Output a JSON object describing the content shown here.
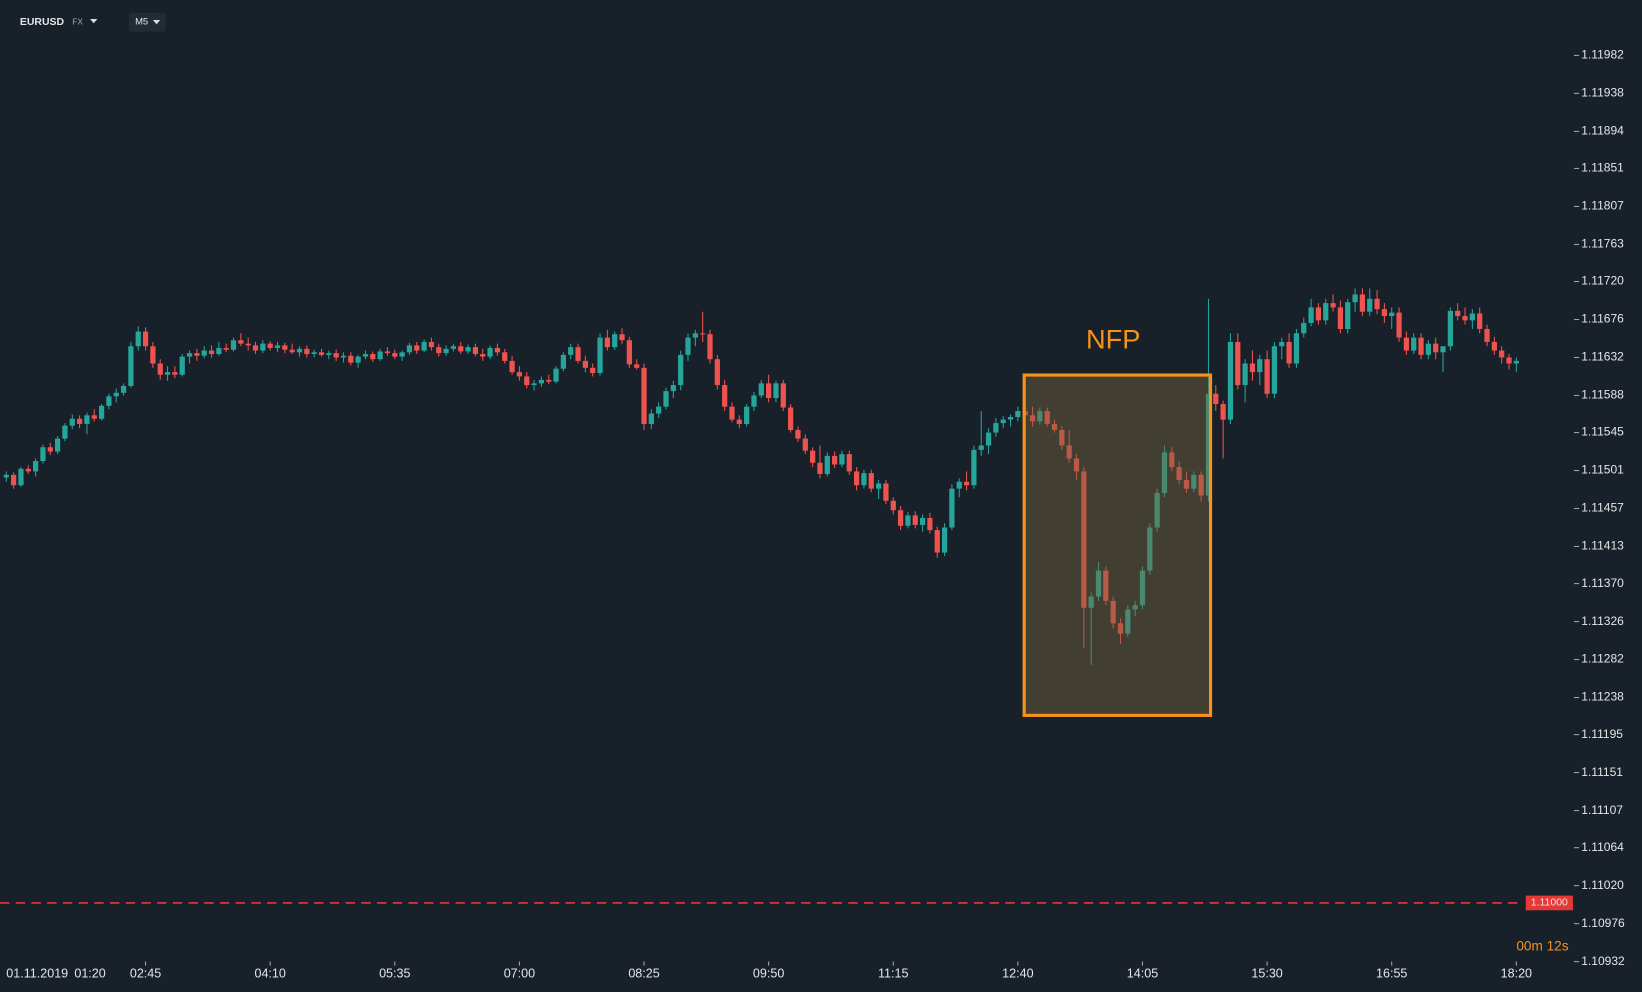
{
  "header": {
    "symbol": "EURUSD",
    "market": "FX",
    "timeframe": "M5"
  },
  "chart_data": {
    "type": "candlestick",
    "up_color": "#26a69a",
    "down_color": "#ef5350",
    "ylim": [
      1.10897,
      1.12046
    ],
    "yticks": [
      1.11982,
      1.11938,
      1.11894,
      1.11851,
      1.11807,
      1.11763,
      {
        "value": 1.1172,
        "label": "1.11720"
      },
      1.11676,
      1.11632,
      1.11588,
      1.11545,
      1.11501,
      1.11457,
      1.11413,
      {
        "value": 1.1137,
        "label": "1.11370"
      },
      1.11326,
      1.11282,
      1.11238,
      1.11195,
      1.11151,
      1.11107,
      1.11064,
      {
        "value": 1.1102,
        "label": "1.11020"
      },
      1.10976,
      1.10932
    ],
    "start_date": "01.11.2019",
    "start_time": "01:20",
    "xticks": [
      {
        "value": 19,
        "label": "02:45"
      },
      {
        "value": 36,
        "label": "04:10"
      },
      {
        "value": 53,
        "label": "05:35"
      },
      {
        "value": 70,
        "label": "07:00"
      },
      {
        "value": 87,
        "label": "08:25"
      },
      {
        "value": 104,
        "label": "09:50"
      },
      {
        "value": 121,
        "label": "11:15"
      },
      {
        "value": 138,
        "label": "12:40"
      },
      {
        "value": 155,
        "label": "14:05"
      },
      {
        "value": 172,
        "label": "15:30"
      },
      {
        "value": 189,
        "label": "16:55"
      },
      {
        "value": 206,
        "label": "18:20"
      }
    ],
    "price_line": {
      "value": 1.11,
      "label": "1.11000",
      "color": "#e53935"
    },
    "annotation": "NFP",
    "countdown": "00m 12s",
    "candles": [
      [
        1.11493,
        1.115,
        1.11488,
        1.11496
      ],
      [
        1.11496,
        1.11499,
        1.1148,
        1.11484
      ],
      [
        1.11484,
        1.11505,
        1.11482,
        1.11503
      ],
      [
        1.11503,
        1.11507,
        1.11497,
        1.115
      ],
      [
        1.115,
        1.11515,
        1.11494,
        1.11512
      ],
      [
        1.11512,
        1.11531,
        1.11509,
        1.11528
      ],
      [
        1.11528,
        1.11533,
        1.11519,
        1.11523
      ],
      [
        1.11523,
        1.11541,
        1.1152,
        1.11538
      ],
      [
        1.11538,
        1.11556,
        1.11535,
        1.11553
      ],
      [
        1.11553,
        1.11566,
        1.11549,
        1.11561
      ],
      [
        1.11561,
        1.11565,
        1.1155,
        1.11555
      ],
      [
        1.11555,
        1.11568,
        1.11543,
        1.11565
      ],
      [
        1.11565,
        1.11572,
        1.11558,
        1.11561
      ],
      [
        1.11561,
        1.11578,
        1.11559,
        1.11576
      ],
      [
        1.11576,
        1.1159,
        1.11572,
        1.11587
      ],
      [
        1.11587,
        1.11596,
        1.1158,
        1.11591
      ],
      [
        1.11591,
        1.11602,
        1.11588,
        1.11599
      ],
      [
        1.11599,
        1.1165,
        1.11597,
        1.11645
      ],
      [
        1.11645,
        1.11668,
        1.1164,
        1.11662
      ],
      [
        1.11662,
        1.11667,
        1.1164,
        1.11645
      ],
      [
        1.11645,
        1.1165,
        1.1162,
        1.11625
      ],
      [
        1.11625,
        1.1163,
        1.11606,
        1.11612
      ],
      [
        1.11612,
        1.11622,
        1.11605,
        1.11615
      ],
      [
        1.11615,
        1.11622,
        1.11608,
        1.11612
      ],
      [
        1.11612,
        1.11636,
        1.1161,
        1.11633
      ],
      [
        1.11633,
        1.1164,
        1.11625,
        1.11637
      ],
      [
        1.11637,
        1.11642,
        1.11628,
        1.11634
      ],
      [
        1.11634,
        1.11645,
        1.11631,
        1.1164
      ],
      [
        1.1164,
        1.11646,
        1.11632,
        1.11636
      ],
      [
        1.11636,
        1.1165,
        1.11634,
        1.11643
      ],
      [
        1.11643,
        1.11648,
        1.11638,
        1.11641
      ],
      [
        1.11641,
        1.11655,
        1.11639,
        1.11652
      ],
      [
        1.11652,
        1.1166,
        1.11645,
        1.11648
      ],
      [
        1.11648,
        1.11655,
        1.1164,
        1.11646
      ],
      [
        1.11646,
        1.1165,
        1.11636,
        1.1164
      ],
      [
        1.1164,
        1.11652,
        1.11637,
        1.11648
      ],
      [
        1.11648,
        1.11651,
        1.1164,
        1.11643
      ],
      [
        1.11643,
        1.1165,
        1.11638,
        1.11646
      ],
      [
        1.11646,
        1.11649,
        1.11637,
        1.11641
      ],
      [
        1.11641,
        1.11648,
        1.11636,
        1.11638
      ],
      [
        1.11638,
        1.11645,
        1.11633,
        1.11642
      ],
      [
        1.11642,
        1.11646,
        1.11632,
        1.11636
      ],
      [
        1.11636,
        1.11641,
        1.11632,
        1.11638
      ],
      [
        1.11638,
        1.11642,
        1.11633,
        1.11635
      ],
      [
        1.11635,
        1.1164,
        1.1163,
        1.11637
      ],
      [
        1.11637,
        1.11641,
        1.11628,
        1.11632
      ],
      [
        1.11632,
        1.11638,
        1.11626,
        1.11634
      ],
      [
        1.11634,
        1.11638,
        1.11623,
        1.11626
      ],
      [
        1.11626,
        1.11635,
        1.1162,
        1.11633
      ],
      [
        1.11633,
        1.1164,
        1.1163,
        1.11636
      ],
      [
        1.11636,
        1.11639,
        1.11627,
        1.1163
      ],
      [
        1.1163,
        1.11642,
        1.11628,
        1.11639
      ],
      [
        1.11639,
        1.11644,
        1.11634,
        1.11637
      ],
      [
        1.11637,
        1.11641,
        1.1163,
        1.11633
      ],
      [
        1.11633,
        1.1164,
        1.11628,
        1.11638
      ],
      [
        1.11638,
        1.11649,
        1.11635,
        1.11646
      ],
      [
        1.11646,
        1.1165,
        1.11636,
        1.1164
      ],
      [
        1.1164,
        1.11653,
        1.11638,
        1.1165
      ],
      [
        1.1165,
        1.11655,
        1.1164,
        1.11644
      ],
      [
        1.11644,
        1.11648,
        1.11633,
        1.11637
      ],
      [
        1.11637,
        1.11646,
        1.11634,
        1.11642
      ],
      [
        1.11642,
        1.11648,
        1.11639,
        1.11645
      ],
      [
        1.11645,
        1.1165,
        1.11636,
        1.11639
      ],
      [
        1.11639,
        1.11647,
        1.11636,
        1.11644
      ],
      [
        1.11644,
        1.11648,
        1.11633,
        1.11636
      ],
      [
        1.11636,
        1.11642,
        1.11628,
        1.11633
      ],
      [
        1.11633,
        1.11646,
        1.1163,
        1.11643
      ],
      [
        1.11643,
        1.11648,
        1.11634,
        1.11638
      ],
      [
        1.11638,
        1.11642,
        1.11625,
        1.11628
      ],
      [
        1.11628,
        1.11634,
        1.11612,
        1.11615
      ],
      [
        1.11615,
        1.11622,
        1.11605,
        1.1161
      ],
      [
        1.1161,
        1.11615,
        1.11596,
        1.116
      ],
      [
        1.116,
        1.11606,
        1.11594,
        1.11602
      ],
      [
        1.11602,
        1.1161,
        1.11598,
        1.11606
      ],
      [
        1.11606,
        1.11612,
        1.11601,
        1.11604
      ],
      [
        1.11604,
        1.11622,
        1.11602,
        1.11619
      ],
      [
        1.11619,
        1.11638,
        1.11616,
        1.11635
      ],
      [
        1.11635,
        1.11648,
        1.1163,
        1.11644
      ],
      [
        1.11644,
        1.11648,
        1.11625,
        1.11628
      ],
      [
        1.11628,
        1.11634,
        1.11615,
        1.1162
      ],
      [
        1.1162,
        1.11625,
        1.1161,
        1.11614
      ],
      [
        1.11614,
        1.1166,
        1.11611,
        1.11655
      ],
      [
        1.11655,
        1.11664,
        1.1164,
        1.11644
      ],
      [
        1.11644,
        1.11662,
        1.11641,
        1.11659
      ],
      [
        1.11659,
        1.11666,
        1.11648,
        1.11652
      ],
      [
        1.11652,
        1.11656,
        1.1162,
        1.11624
      ],
      [
        1.11624,
        1.1163,
        1.11618,
        1.1162
      ],
      [
        1.1162,
        1.11625,
        1.11548,
        1.11555
      ],
      [
        1.11555,
        1.11572,
        1.11549,
        1.11567
      ],
      [
        1.11567,
        1.1158,
        1.11562,
        1.11575
      ],
      [
        1.11575,
        1.11597,
        1.11572,
        1.11593
      ],
      [
        1.11593,
        1.11605,
        1.11585,
        1.116
      ],
      [
        1.116,
        1.1164,
        1.11594,
        1.11635
      ],
      [
        1.11635,
        1.1166,
        1.11628,
        1.11655
      ],
      [
        1.11655,
        1.11664,
        1.11645,
        1.1166
      ],
      [
        1.1166,
        1.11685,
        1.1165,
        1.11659
      ],
      [
        1.11659,
        1.11664,
        1.11625,
        1.1163
      ],
      [
        1.1163,
        1.11635,
        1.11595,
        1.116
      ],
      [
        1.116,
        1.11606,
        1.1157,
        1.11575
      ],
      [
        1.11575,
        1.1158,
        1.11557,
        1.1156
      ],
      [
        1.1156,
        1.11565,
        1.1155,
        1.11555
      ],
      [
        1.11555,
        1.11578,
        1.11552,
        1.11575
      ],
      [
        1.11575,
        1.11592,
        1.1157,
        1.11588
      ],
      [
        1.11588,
        1.11606,
        1.11585,
        1.11602
      ],
      [
        1.11602,
        1.11612,
        1.1158,
        1.11585
      ],
      [
        1.11585,
        1.11605,
        1.1158,
        1.11602
      ],
      [
        1.11602,
        1.11606,
        1.1157,
        1.11574
      ],
      [
        1.11574,
        1.11578,
        1.11545,
        1.11548
      ],
      [
        1.11548,
        1.11552,
        1.11534,
        1.11538
      ],
      [
        1.11538,
        1.11543,
        1.1152,
        1.11524
      ],
      [
        1.11524,
        1.11528,
        1.11505,
        1.1151
      ],
      [
        1.1151,
        1.1153,
        1.11492,
        1.11497
      ],
      [
        1.11497,
        1.11522,
        1.11494,
        1.11518
      ],
      [
        1.11518,
        1.11523,
        1.11504,
        1.11508
      ],
      [
        1.11508,
        1.11524,
        1.11505,
        1.1152
      ],
      [
        1.1152,
        1.11524,
        1.11496,
        1.115
      ],
      [
        1.115,
        1.11505,
        1.11478,
        1.11484
      ],
      [
        1.11484,
        1.11502,
        1.1148,
        1.11498
      ],
      [
        1.11498,
        1.11502,
        1.11476,
        1.1148
      ],
      [
        1.1148,
        1.1149,
        1.11468,
        1.11486
      ],
      [
        1.11486,
        1.1149,
        1.11462,
        1.11466
      ],
      [
        1.11466,
        1.1147,
        1.1145,
        1.11455
      ],
      [
        1.11455,
        1.1146,
        1.11432,
        1.11437
      ],
      [
        1.11437,
        1.11453,
        1.11434,
        1.11449
      ],
      [
        1.11449,
        1.11454,
        1.11434,
        1.11438
      ],
      [
        1.11438,
        1.1145,
        1.1143,
        1.11446
      ],
      [
        1.11446,
        1.11452,
        1.11428,
        1.11432
      ],
      [
        1.11432,
        1.11436,
        1.114,
        1.11406
      ],
      [
        1.11406,
        1.1144,
        1.11402,
        1.11435
      ],
      [
        1.11435,
        1.11485,
        1.11432,
        1.1148
      ],
      [
        1.1148,
        1.11492,
        1.1147,
        1.11488
      ],
      [
        1.11488,
        1.115,
        1.11478,
        1.11484
      ],
      [
        1.11484,
        1.1153,
        1.1148,
        1.11525
      ],
      [
        1.11525,
        1.1157,
        1.11518,
        1.1153
      ],
      [
        1.1153,
        1.1155,
        1.1152,
        1.11545
      ],
      [
        1.11545,
        1.11562,
        1.1154,
        1.11556
      ],
      [
        1.11556,
        1.11564,
        1.1155,
        1.1156
      ],
      [
        1.1156,
        1.11566,
        1.11552,
        1.11563
      ],
      [
        1.11563,
        1.11575,
        1.11558,
        1.1157
      ],
      [
        1.1157,
        1.11574,
        1.1156,
        1.11565
      ],
      [
        1.11565,
        1.11575,
        1.11552,
        1.11558
      ],
      [
        1.11558,
        1.11574,
        1.11554,
        1.1157
      ],
      [
        1.1157,
        1.11574,
        1.11552,
        1.11555
      ],
      [
        1.11555,
        1.1156,
        1.11545,
        1.11548
      ],
      [
        1.11548,
        1.11553,
        1.11525,
        1.1153
      ],
      [
        1.1153,
        1.11548,
        1.1151,
        1.11515
      ],
      [
        1.11515,
        1.1152,
        1.1149,
        1.115
      ],
      [
        1.115,
        1.11505,
        1.11295,
        1.11342
      ],
      [
        1.11342,
        1.1136,
        1.11276,
        1.11355
      ],
      [
        1.11355,
        1.11395,
        1.1135,
        1.11385
      ],
      [
        1.11385,
        1.1139,
        1.11345,
        1.1135
      ],
      [
        1.1135,
        1.11355,
        1.11318,
        1.11324
      ],
      [
        1.11324,
        1.1133,
        1.113,
        1.11312
      ],
      [
        1.11312,
        1.11345,
        1.11308,
        1.1134
      ],
      [
        1.1134,
        1.1135,
        1.11332,
        1.11345
      ],
      [
        1.11345,
        1.1139,
        1.1134,
        1.11385
      ],
      [
        1.11385,
        1.1144,
        1.1138,
        1.11435
      ],
      [
        1.11435,
        1.1148,
        1.1143,
        1.11475
      ],
      [
        1.11475,
        1.1153,
        1.1147,
        1.11522
      ],
      [
        1.11522,
        1.11528,
        1.115,
        1.11505
      ],
      [
        1.11505,
        1.11512,
        1.11485,
        1.1149
      ],
      [
        1.1149,
        1.115,
        1.11475,
        1.1148
      ],
      [
        1.1148,
        1.115,
        1.11476,
        1.11496
      ],
      [
        1.11496,
        1.115,
        1.11465,
        1.11472
      ],
      [
        1.11472,
        1.117,
        1.11465,
        1.1159
      ],
      [
        1.1159,
        1.116,
        1.1157,
        1.11578
      ],
      [
        1.11578,
        1.11582,
        1.11515,
        1.1156
      ],
      [
        1.1156,
        1.1166,
        1.11555,
        1.1165
      ],
      [
        1.1165,
        1.1166,
        1.11595,
        1.116
      ],
      [
        1.116,
        1.1163,
        1.1158,
        1.11625
      ],
      [
        1.11625,
        1.1164,
        1.11605,
        1.11615
      ],
      [
        1.11615,
        1.11635,
        1.116,
        1.1163
      ],
      [
        1.1163,
        1.1164,
        1.11585,
        1.1159
      ],
      [
        1.1159,
        1.1165,
        1.11585,
        1.11645
      ],
      [
        1.11645,
        1.11655,
        1.1163,
        1.1165
      ],
      [
        1.1165,
        1.1166,
        1.1162,
        1.11625
      ],
      [
        1.11625,
        1.11665,
        1.1162,
        1.1166
      ],
      [
        1.1166,
        1.11678,
        1.11655,
        1.11672
      ],
      [
        1.11672,
        1.117,
        1.11668,
        1.1169
      ],
      [
        1.1169,
        1.11695,
        1.1167,
        1.11675
      ],
      [
        1.11675,
        1.117,
        1.1167,
        1.11695
      ],
      [
        1.11695,
        1.11705,
        1.11685,
        1.1169
      ],
      [
        1.1169,
        1.11698,
        1.1166,
        1.11665
      ],
      [
        1.11665,
        1.117,
        1.1166,
        1.11696
      ],
      [
        1.11696,
        1.11712,
        1.11685,
        1.11705
      ],
      [
        1.11705,
        1.11712,
        1.1168,
        1.11685
      ],
      [
        1.11685,
        1.11712,
        1.1168,
        1.117
      ],
      [
        1.117,
        1.1171,
        1.11682,
        1.11688
      ],
      [
        1.11688,
        1.11695,
        1.11672,
        1.1168
      ],
      [
        1.1168,
        1.1169,
        1.11665,
        1.11684
      ],
      [
        1.11684,
        1.1169,
        1.1165,
        1.11655
      ],
      [
        1.11655,
        1.11662,
        1.11635,
        1.1164
      ],
      [
        1.1164,
        1.1166,
        1.11636,
        1.11655
      ],
      [
        1.11655,
        1.1166,
        1.1163,
        1.11635
      ],
      [
        1.11635,
        1.11652,
        1.1163,
        1.11648
      ],
      [
        1.11648,
        1.11655,
        1.1163,
        1.11638
      ],
      [
        1.11638,
        1.11645,
        1.11615,
        1.11645
      ],
      [
        1.11645,
        1.1169,
        1.1164,
        1.11686
      ],
      [
        1.11686,
        1.11695,
        1.11675,
        1.1168
      ],
      [
        1.1168,
        1.1169,
        1.1167,
        1.11675
      ],
      [
        1.11675,
        1.11688,
        1.11665,
        1.11683
      ],
      [
        1.11683,
        1.1169,
        1.1166,
        1.11665
      ],
      [
        1.11665,
        1.1167,
        1.11645,
        1.1165
      ],
      [
        1.1165,
        1.11656,
        1.11635,
        1.1164
      ],
      [
        1.1164,
        1.11645,
        1.11625,
        1.11632
      ],
      [
        1.11632,
        1.11636,
        1.11618,
        1.11625
      ],
      [
        1.11625,
        1.11632,
        1.11615,
        1.11628
      ]
    ]
  }
}
